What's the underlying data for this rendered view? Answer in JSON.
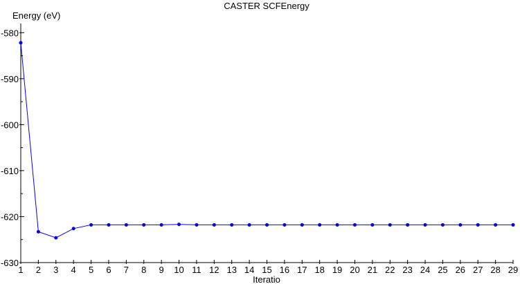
{
  "chart_data": {
    "type": "line",
    "title": "CASTER SCFEnergy",
    "ylabel": "Energy (eV)",
    "xlabel": "Iteratio",
    "xlim": [
      1,
      29
    ],
    "ylim": [
      -630,
      -578
    ],
    "x_ticks": [
      1,
      2,
      3,
      4,
      5,
      6,
      7,
      8,
      9,
      10,
      11,
      12,
      13,
      14,
      15,
      16,
      17,
      18,
      19,
      20,
      21,
      22,
      23,
      24,
      25,
      26,
      27,
      28,
      29
    ],
    "y_ticks": [
      -580,
      -590,
      -600,
      -610,
      -620,
      -630
    ],
    "grid": false,
    "legend": "none",
    "series": [
      {
        "color": "#0000ff",
        "x": [
          1,
          2,
          3,
          4,
          5,
          6,
          7,
          8,
          9,
          10,
          11,
          12,
          13,
          14,
          15,
          16,
          17,
          18,
          19,
          20,
          21,
          22,
          23,
          24,
          25,
          26,
          27,
          28,
          29
        ],
        "y": [
          -582.2,
          -623.3,
          -624.6,
          -622.6,
          -621.8,
          -621.8,
          -621.8,
          -621.8,
          -621.8,
          -621.7,
          -621.8,
          -621.8,
          -621.8,
          -621.8,
          -621.8,
          -621.8,
          -621.8,
          -621.8,
          -621.8,
          -621.8,
          -621.8,
          -621.8,
          -621.8,
          -621.8,
          -621.8,
          -621.8,
          -621.8,
          -621.8,
          -621.8
        ]
      }
    ]
  }
}
